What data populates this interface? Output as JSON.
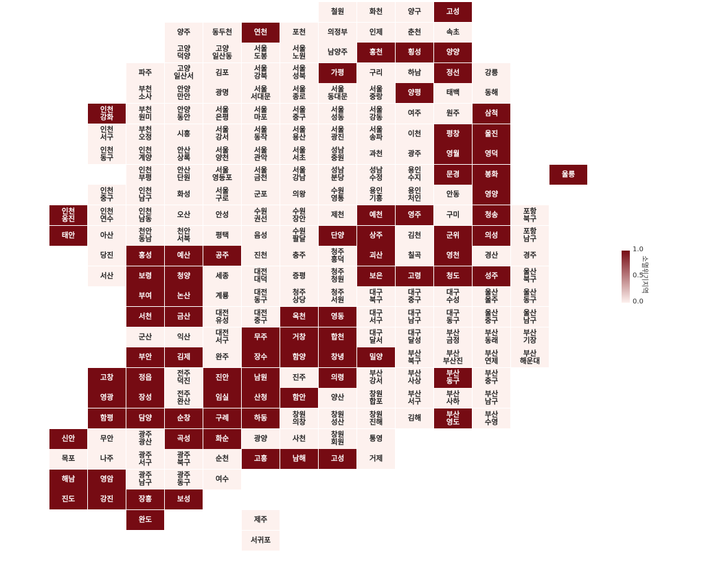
{
  "legend": {
    "title": "소멸위기지역",
    "lim": [
      0,
      1
    ],
    "ticks": [
      {
        "value": 0,
        "label": "0.0"
      },
      {
        "value": 0.5,
        "label": "0.5"
      },
      {
        "value": 1,
        "label": "1.0"
      }
    ]
  },
  "tiles": [
    {
      "label": "철원",
      "value": 0
    },
    {
      "label": "화천",
      "value": 0
    },
    {
      "label": "양구",
      "value": 0
    },
    {
      "label": "고성",
      "value": 1
    },
    {
      "label": "양주",
      "value": 0
    },
    {
      "label": "동두천",
      "value": 0
    },
    {
      "label": "연천",
      "value": 1
    },
    {
      "label": "포천",
      "value": 0
    },
    {
      "label": "의정부",
      "value": 0
    },
    {
      "label": "인제",
      "value": 0
    },
    {
      "label": "춘천",
      "value": 0
    },
    {
      "label": "속초",
      "value": 0
    },
    {
      "label": "고양\n덕양",
      "value": 0
    },
    {
      "label": "고양\n일산동",
      "value": 0
    },
    {
      "label": "서울\n도봉",
      "value": 0
    },
    {
      "label": "서울\n노원",
      "value": 0
    },
    {
      "label": "남양주",
      "value": 0
    },
    {
      "label": "홍천",
      "value": 1
    },
    {
      "label": "횡성",
      "value": 1
    },
    {
      "label": "양양",
      "value": 1
    },
    {
      "label": "파주",
      "value": 0
    },
    {
      "label": "고양\n일산서",
      "value": 0
    },
    {
      "label": "김포",
      "value": 0
    },
    {
      "label": "서울\n강북",
      "value": 0
    },
    {
      "label": "서울\n성북",
      "value": 0
    },
    {
      "label": "가평",
      "value": 1
    },
    {
      "label": "구리",
      "value": 0
    },
    {
      "label": "하남",
      "value": 0
    },
    {
      "label": "정선",
      "value": 1
    },
    {
      "label": "강릉",
      "value": 0
    },
    {
      "label": "부천\n소사",
      "value": 0
    },
    {
      "label": "안양\n만안",
      "value": 0
    },
    {
      "label": "광명",
      "value": 0
    },
    {
      "label": "서울\n서대문",
      "value": 0
    },
    {
      "label": "서울\n종로",
      "value": 0
    },
    {
      "label": "서울\n동대문",
      "value": 0
    },
    {
      "label": "서울\n중랑",
      "value": 0
    },
    {
      "label": "양평",
      "value": 1
    },
    {
      "label": "태백",
      "value": 0
    },
    {
      "label": "동해",
      "value": 0
    },
    {
      "label": "인천\n강화",
      "value": 1
    },
    {
      "label": "부천\n원미",
      "value": 0
    },
    {
      "label": "안양\n동안",
      "value": 0
    },
    {
      "label": "서울\n은평",
      "value": 0
    },
    {
      "label": "서울\n마포",
      "value": 0
    },
    {
      "label": "서울\n중구",
      "value": 0
    },
    {
      "label": "서울\n성동",
      "value": 0
    },
    {
      "label": "서울\n강동",
      "value": 0
    },
    {
      "label": "여주",
      "value": 0
    },
    {
      "label": "원주",
      "value": 0
    },
    {
      "label": "삼척",
      "value": 1
    },
    {
      "label": "인천\n서구",
      "value": 0
    },
    {
      "label": "부천\n오정",
      "value": 0
    },
    {
      "label": "시흥",
      "value": 0
    },
    {
      "label": "서울\n강서",
      "value": 0
    },
    {
      "label": "서울\n동작",
      "value": 0
    },
    {
      "label": "서울\n용산",
      "value": 0
    },
    {
      "label": "서울\n광진",
      "value": 0
    },
    {
      "label": "서울\n송파",
      "value": 0
    },
    {
      "label": "이천",
      "value": 0
    },
    {
      "label": "평창",
      "value": 1
    },
    {
      "label": "울진",
      "value": 1
    },
    {
      "label": "인천\n동구",
      "value": 0
    },
    {
      "label": "인천\n계양",
      "value": 0
    },
    {
      "label": "안산\n상록",
      "value": 0
    },
    {
      "label": "서울\n양천",
      "value": 0
    },
    {
      "label": "서울\n관악",
      "value": 0
    },
    {
      "label": "서울\n서초",
      "value": 0
    },
    {
      "label": "성남\n중원",
      "value": 0
    },
    {
      "label": "과천",
      "value": 0
    },
    {
      "label": "광주",
      "value": 0
    },
    {
      "label": "영월",
      "value": 1
    },
    {
      "label": "영덕",
      "value": 1
    },
    {
      "label": "인천\n부평",
      "value": 0
    },
    {
      "label": "안산\n단원",
      "value": 0
    },
    {
      "label": "서울\n영등포",
      "value": 0
    },
    {
      "label": "서울\n금천",
      "value": 0
    },
    {
      "label": "서울\n강남",
      "value": 0
    },
    {
      "label": "성남\n분당",
      "value": 0
    },
    {
      "label": "성남\n수정",
      "value": 0
    },
    {
      "label": "용인\n수지",
      "value": 0
    },
    {
      "label": "문경",
      "value": 1
    },
    {
      "label": "봉화",
      "value": 1
    },
    {
      "label": "울릉",
      "value": 1
    },
    {
      "label": "인천\n중구",
      "value": 0
    },
    {
      "label": "인천\n남구",
      "value": 0
    },
    {
      "label": "화성",
      "value": 0
    },
    {
      "label": "서울\n구로",
      "value": 0
    },
    {
      "label": "군포",
      "value": 0
    },
    {
      "label": "의왕",
      "value": 0
    },
    {
      "label": "수원\n영통",
      "value": 0
    },
    {
      "label": "용인\n기흥",
      "value": 0
    },
    {
      "label": "용인\n처인",
      "value": 0
    },
    {
      "label": "안동",
      "value": 0
    },
    {
      "label": "영양",
      "value": 1
    },
    {
      "label": "인천\n옹진",
      "value": 1
    },
    {
      "label": "인천\n연수",
      "value": 0
    },
    {
      "label": "인천\n남동",
      "value": 0
    },
    {
      "label": "오산",
      "value": 0
    },
    {
      "label": "안성",
      "value": 0
    },
    {
      "label": "수원\n권선",
      "value": 0
    },
    {
      "label": "수원\n장안",
      "value": 0
    },
    {
      "label": "제천",
      "value": 0
    },
    {
      "label": "예천",
      "value": 1
    },
    {
      "label": "영주",
      "value": 1
    },
    {
      "label": "구미",
      "value": 0
    },
    {
      "label": "청송",
      "value": 1
    },
    {
      "label": "포항\n북구",
      "value": 0
    },
    {
      "label": "태안",
      "value": 1
    },
    {
      "label": "아산",
      "value": 0
    },
    {
      "label": "천안\n동남",
      "value": 0
    },
    {
      "label": "천안\n서북",
      "value": 0
    },
    {
      "label": "평택",
      "value": 0
    },
    {
      "label": "음성",
      "value": 0
    },
    {
      "label": "수원\n팔달",
      "value": 0
    },
    {
      "label": "단양",
      "value": 1
    },
    {
      "label": "상주",
      "value": 1
    },
    {
      "label": "김천",
      "value": 0
    },
    {
      "label": "군위",
      "value": 1
    },
    {
      "label": "의성",
      "value": 1
    },
    {
      "label": "포항\n남구",
      "value": 0
    },
    {
      "label": "당진",
      "value": 0
    },
    {
      "label": "홍성",
      "value": 1
    },
    {
      "label": "예산",
      "value": 1
    },
    {
      "label": "공주",
      "value": 1
    },
    {
      "label": "진천",
      "value": 0
    },
    {
      "label": "충주",
      "value": 0
    },
    {
      "label": "청주\n흥덕",
      "value": 0
    },
    {
      "label": "괴산",
      "value": 1
    },
    {
      "label": "칠곡",
      "value": 0
    },
    {
      "label": "영천",
      "value": 1
    },
    {
      "label": "경산",
      "value": 0
    },
    {
      "label": "경주",
      "value": 0
    },
    {
      "label": "서산",
      "value": 0
    },
    {
      "label": "보령",
      "value": 1
    },
    {
      "label": "청양",
      "value": 1
    },
    {
      "label": "세종",
      "value": 0
    },
    {
      "label": "대전\n대덕",
      "value": 0
    },
    {
      "label": "증평",
      "value": 0
    },
    {
      "label": "청주\n청원",
      "value": 0
    },
    {
      "label": "보은",
      "value": 1
    },
    {
      "label": "고령",
      "value": 1
    },
    {
      "label": "청도",
      "value": 1
    },
    {
      "label": "성주",
      "value": 1
    },
    {
      "label": "울산\n북구",
      "value": 0
    },
    {
      "label": "부여",
      "value": 1
    },
    {
      "label": "논산",
      "value": 1
    },
    {
      "label": "계룡",
      "value": 0
    },
    {
      "label": "대전\n동구",
      "value": 0
    },
    {
      "label": "청주\n상당",
      "value": 0
    },
    {
      "label": "청주\n서원",
      "value": 0
    },
    {
      "label": "대구\n북구",
      "value": 0
    },
    {
      "label": "대구\n중구",
      "value": 0
    },
    {
      "label": "대구\n수성",
      "value": 0
    },
    {
      "label": "울산\n울주",
      "value": 0
    },
    {
      "label": "울산\n동구",
      "value": 0
    },
    {
      "label": "서천",
      "value": 1
    },
    {
      "label": "금산",
      "value": 1
    },
    {
      "label": "대전\n유성",
      "value": 0
    },
    {
      "label": "대전\n중구",
      "value": 0
    },
    {
      "label": "옥천",
      "value": 1
    },
    {
      "label": "영동",
      "value": 1
    },
    {
      "label": "대구\n서구",
      "value": 0
    },
    {
      "label": "대구\n남구",
      "value": 0
    },
    {
      "label": "대구\n동구",
      "value": 0
    },
    {
      "label": "울산\n중구",
      "value": 0
    },
    {
      "label": "울산\n남구",
      "value": 0
    },
    {
      "label": "군산",
      "value": 0
    },
    {
      "label": "익산",
      "value": 0
    },
    {
      "label": "대전\n서구",
      "value": 0
    },
    {
      "label": "무주",
      "value": 1
    },
    {
      "label": "거창",
      "value": 1
    },
    {
      "label": "합천",
      "value": 1
    },
    {
      "label": "대구\n달서",
      "value": 0
    },
    {
      "label": "대구\n달성",
      "value": 0
    },
    {
      "label": "부산\n금정",
      "value": 0
    },
    {
      "label": "부산\n동래",
      "value": 0
    },
    {
      "label": "부산\n기장",
      "value": 0
    },
    {
      "label": "부안",
      "value": 1
    },
    {
      "label": "김제",
      "value": 1
    },
    {
      "label": "완주",
      "value": 0
    },
    {
      "label": "장수",
      "value": 1
    },
    {
      "label": "함양",
      "value": 1
    },
    {
      "label": "창녕",
      "value": 1
    },
    {
      "label": "밀양",
      "value": 1
    },
    {
      "label": "부산\n북구",
      "value": 0
    },
    {
      "label": "부산\n부산진",
      "value": 0
    },
    {
      "label": "부산\n연제",
      "value": 0
    },
    {
      "label": "부산\n해운대",
      "value": 0
    },
    {
      "label": "고창",
      "value": 1
    },
    {
      "label": "정읍",
      "value": 1
    },
    {
      "label": "전주\n덕진",
      "value": 0
    },
    {
      "label": "진안",
      "value": 1
    },
    {
      "label": "남원",
      "value": 1
    },
    {
      "label": "진주",
      "value": 0
    },
    {
      "label": "의령",
      "value": 1
    },
    {
      "label": "부산\n강서",
      "value": 0
    },
    {
      "label": "부산\n사상",
      "value": 0
    },
    {
      "label": "부산\n동구",
      "value": 1
    },
    {
      "label": "부산\n중구",
      "value": 0
    },
    {
      "label": "영광",
      "value": 1
    },
    {
      "label": "장성",
      "value": 1
    },
    {
      "label": "전주\n완산",
      "value": 0
    },
    {
      "label": "임실",
      "value": 1
    },
    {
      "label": "산청",
      "value": 1
    },
    {
      "label": "함안",
      "value": 1
    },
    {
      "label": "양산",
      "value": 0
    },
    {
      "label": "창원\n합포",
      "value": 0
    },
    {
      "label": "부산\n서구",
      "value": 0
    },
    {
      "label": "부산\n사하",
      "value": 0
    },
    {
      "label": "부산\n남구",
      "value": 0
    },
    {
      "label": "함평",
      "value": 1
    },
    {
      "label": "담양",
      "value": 1
    },
    {
      "label": "순창",
      "value": 1
    },
    {
      "label": "구례",
      "value": 1
    },
    {
      "label": "하동",
      "value": 1
    },
    {
      "label": "창원\n의창",
      "value": 0
    },
    {
      "label": "창원\n성산",
      "value": 0
    },
    {
      "label": "창원\n진해",
      "value": 0
    },
    {
      "label": "김해",
      "value": 0
    },
    {
      "label": "부산\n영도",
      "value": 1
    },
    {
      "label": "부산\n수영",
      "value": 0
    },
    {
      "label": "신안",
      "value": 1
    },
    {
      "label": "무안",
      "value": 0
    },
    {
      "label": "광주\n광산",
      "value": 0
    },
    {
      "label": "곡성",
      "value": 1
    },
    {
      "label": "화순",
      "value": 1
    },
    {
      "label": "광양",
      "value": 0
    },
    {
      "label": "사천",
      "value": 0
    },
    {
      "label": "창원\n회원",
      "value": 0
    },
    {
      "label": "통영",
      "value": 0
    },
    {
      "label": "목포",
      "value": 0
    },
    {
      "label": "나주",
      "value": 0
    },
    {
      "label": "광주\n서구",
      "value": 0
    },
    {
      "label": "광주\n북구",
      "value": 0
    },
    {
      "label": "순천",
      "value": 0
    },
    {
      "label": "고흥",
      "value": 1
    },
    {
      "label": "남해",
      "value": 1
    },
    {
      "label": "고성",
      "value": 1
    },
    {
      "label": "거제",
      "value": 0
    },
    {
      "label": "해남",
      "value": 1
    },
    {
      "label": "영암",
      "value": 1
    },
    {
      "label": "광주\n남구",
      "value": 0
    },
    {
      "label": "광주\n동구",
      "value": 0
    },
    {
      "label": "여수",
      "value": 0
    },
    {
      "label": "진도",
      "value": 1
    },
    {
      "label": "강진",
      "value": 1
    },
    {
      "label": "장흥",
      "value": 1
    },
    {
      "label": "보성",
      "value": 1
    },
    {
      "label": "완도",
      "value": 1
    },
    {
      "label": "제주",
      "value": 0
    },
    {
      "label": "서귀포",
      "value": 0
    }
  ]
}
